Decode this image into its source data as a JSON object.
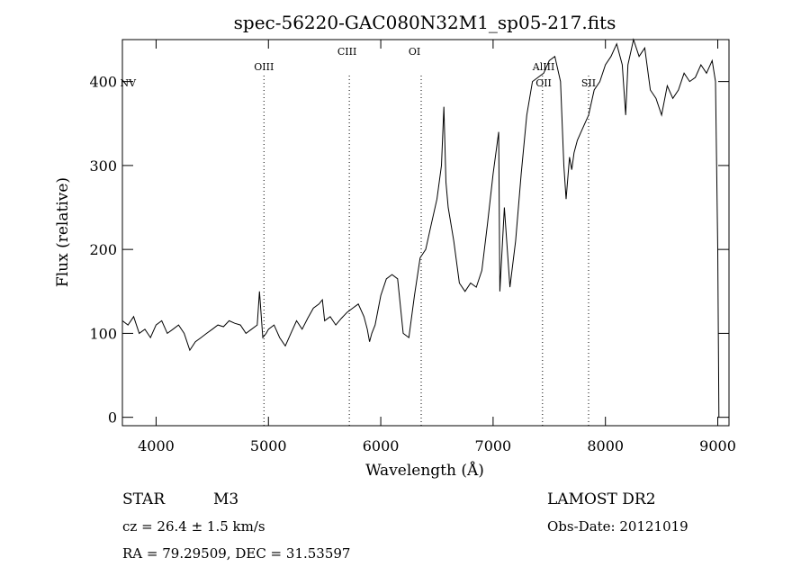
{
  "chart_data": {
    "type": "line",
    "title": "spec-56220-GAC080N32M1_sp05-217.fits",
    "xlabel": "Wavelength (Å)",
    "ylabel": "Flux (relative)",
    "xlim": [
      3700,
      9100
    ],
    "ylim": [
      -10,
      450
    ],
    "xticks": [
      4000,
      5000,
      6000,
      7000,
      8000,
      9000
    ],
    "yticks": [
      0,
      100,
      200,
      300,
      400
    ],
    "grid": false,
    "series": [
      {
        "x": [
          3700,
          3750,
          3800,
          3850,
          3900,
          3950,
          4000,
          4050,
          4100,
          4150,
          4200,
          4250,
          4300,
          4350,
          4400,
          4450,
          4500,
          4550,
          4600,
          4650,
          4700,
          4750,
          4800,
          4850,
          4900,
          4920,
          4950,
          4980,
          5000,
          5050,
          5100,
          5150,
          5200,
          5250,
          5300,
          5350,
          5400,
          5450,
          5480,
          5500,
          5550,
          5600,
          5650,
          5700,
          5750,
          5800,
          5850,
          5880,
          5900,
          5920,
          5950,
          6000,
          6050,
          6100,
          6150,
          6200,
          6250,
          6300,
          6350,
          6400,
          6450,
          6500,
          6540,
          6562,
          6580,
          6600,
          6650,
          6700,
          6750,
          6800,
          6850,
          6900,
          6950,
          7000,
          7050,
          7060,
          7080,
          7100,
          7150,
          7200,
          7250,
          7300,
          7350,
          7400,
          7450,
          7500,
          7550,
          7600,
          7630,
          7650,
          7680,
          7700,
          7720,
          7750,
          7800,
          7850,
          7900,
          7950,
          8000,
          8050,
          8100,
          8150,
          8180,
          8200,
          8250,
          8300,
          8350,
          8400,
          8450,
          8500,
          8550,
          8600,
          8650,
          8700,
          8750,
          8800,
          8850,
          8900,
          8950,
          8980,
          9000,
          9010
        ],
        "y": [
          115,
          110,
          120,
          100,
          105,
          95,
          110,
          115,
          100,
          105,
          110,
          100,
          80,
          90,
          95,
          100,
          105,
          110,
          108,
          115,
          112,
          110,
          100,
          105,
          110,
          150,
          95,
          100,
          105,
          110,
          95,
          85,
          100,
          115,
          105,
          118,
          130,
          135,
          140,
          115,
          120,
          110,
          118,
          125,
          130,
          135,
          120,
          105,
          90,
          100,
          110,
          145,
          165,
          170,
          165,
          100,
          95,
          145,
          190,
          200,
          230,
          260,
          300,
          370,
          280,
          250,
          210,
          160,
          150,
          160,
          155,
          175,
          230,
          290,
          340,
          150,
          200,
          250,
          155,
          210,
          290,
          360,
          400,
          405,
          410,
          425,
          430,
          400,
          300,
          260,
          310,
          295,
          315,
          330,
          345,
          360,
          390,
          400,
          420,
          430,
          445,
          420,
          360,
          420,
          450,
          430,
          440,
          390,
          380,
          360,
          395,
          380,
          390,
          410,
          400,
          405,
          420,
          410,
          425,
          400,
          200,
          0
        ]
      }
    ],
    "annotations": [
      {
        "label": "NV",
        "x": 3750
      },
      {
        "label": "OIII",
        "x": 4960
      },
      {
        "label": "CIII",
        "x": 5700
      },
      {
        "label": "OI",
        "x": 6300
      },
      {
        "label": "AlIII",
        "x": 7450
      },
      {
        "label": "OII",
        "x": 7450
      },
      {
        "label": "SII",
        "x": 7850
      }
    ],
    "vlines": [
      4960,
      5720,
      6360,
      7440,
      7850
    ]
  },
  "info": {
    "class": "STAR",
    "subclass": "M3",
    "survey": "LAMOST DR2",
    "cz": "cz = 26.4 ± 1.5 km/s",
    "obsdate": "Obs-Date: 20121019",
    "radec": "RA =  79.29509, DEC =  31.53597"
  }
}
